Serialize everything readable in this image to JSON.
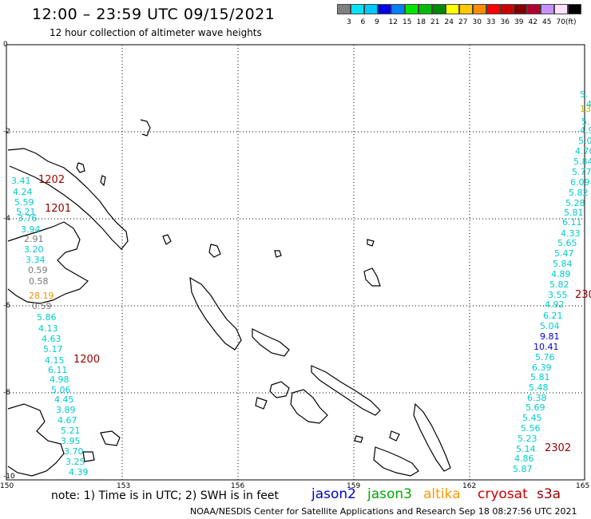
{
  "title": "12:00 – 23:59 UTC 09/15/2021",
  "subtitle": "12 hour collection of altimeter wave heights",
  "colorbar": {
    "colors": [
      "#808080",
      "#00e5ff",
      "#00c8ff",
      "#0000e6",
      "#0080ff",
      "#00e600",
      "#00bb00",
      "#008800",
      "#ffff00",
      "#ffc800",
      "#ff8c00",
      "#ff0000",
      "#c80000",
      "#800000",
      "#b00030",
      "#c890ff",
      "#ffe0ff",
      "#000000"
    ],
    "labels": [
      "3",
      "6",
      "9",
      "12",
      "15",
      "18",
      "21",
      "24",
      "27",
      "30",
      "33",
      "36",
      "39",
      "42",
      "45",
      "70"
    ],
    "unit": "(ft)"
  },
  "axes": {
    "y_labels": [
      "0",
      "-2",
      "-4",
      "-6",
      "-8",
      "-10"
    ],
    "x_labels": [
      "150",
      "153",
      "156",
      "159",
      "162",
      "165"
    ]
  },
  "wave_heights": [
    {
      "v": "3.41",
      "c": "cyan"
    },
    {
      "v": "4.24",
      "c": "cyan"
    },
    {
      "v": "5.59",
      "c": "cyan"
    },
    {
      "v": "5.21",
      "c": "cyan"
    },
    {
      "v": "3.76",
      "c": "cyan"
    },
    {
      "v": "3.94",
      "c": "cyan"
    },
    {
      "v": "2.91",
      "c": "gray"
    },
    {
      "v": "3.20",
      "c": "cyan"
    },
    {
      "v": "3.34",
      "c": "cyan"
    },
    {
      "v": "0.59",
      "c": "gray"
    },
    {
      "v": "0.58",
      "c": "gray"
    },
    {
      "v": "28.19",
      "c": "orange"
    },
    {
      "v": "0.59",
      "c": "gray"
    },
    {
      "v": "5.86",
      "c": "cyan"
    },
    {
      "v": "4.13",
      "c": "cyan"
    },
    {
      "v": "4.63",
      "c": "cyan"
    },
    {
      "v": "5.17",
      "c": "cyan"
    },
    {
      "v": "4.15",
      "c": "cyan"
    },
    {
      "v": "6.11",
      "c": "cyan"
    },
    {
      "v": "4.98",
      "c": "cyan"
    },
    {
      "v": "5.06",
      "c": "cyan"
    },
    {
      "v": "4.45",
      "c": "cyan"
    },
    {
      "v": "3.89",
      "c": "cyan"
    },
    {
      "v": "4.67",
      "c": "cyan"
    },
    {
      "v": "5.21",
      "c": "cyan"
    },
    {
      "v": "3.95",
      "c": "cyan"
    },
    {
      "v": "3.70",
      "c": "cyan"
    },
    {
      "v": "3.25",
      "c": "cyan"
    },
    {
      "v": "4.39",
      "c": "cyan"
    },
    {
      "v": "5.",
      "c": "cyan"
    },
    {
      "v": "4",
      "c": "cyan"
    },
    {
      "v": "13",
      "c": "yellow"
    },
    {
      "v": "5.",
      "c": "cyan"
    },
    {
      "v": "4.9",
      "c": "cyan"
    },
    {
      "v": "5.0",
      "c": "cyan"
    },
    {
      "v": "4.70",
      "c": "cyan"
    },
    {
      "v": "5.84",
      "c": "cyan"
    },
    {
      "v": "5.77",
      "c": "cyan"
    },
    {
      "v": "6.09",
      "c": "cyan"
    },
    {
      "v": "5.82",
      "c": "cyan"
    },
    {
      "v": "5.28",
      "c": "cyan"
    },
    {
      "v": "5.81",
      "c": "cyan"
    },
    {
      "v": "6.11",
      "c": "cyan"
    },
    {
      "v": "4.33",
      "c": "cyan"
    },
    {
      "v": "5.65",
      "c": "cyan"
    },
    {
      "v": "5.47",
      "c": "cyan"
    },
    {
      "v": "5.84",
      "c": "cyan"
    },
    {
      "v": "4.89",
      "c": "cyan"
    },
    {
      "v": "5.82",
      "c": "cyan"
    },
    {
      "v": "3.55",
      "c": "cyan"
    },
    {
      "v": "4.92",
      "c": "cyan"
    },
    {
      "v": "6.21",
      "c": "cyan"
    },
    {
      "v": "5.04",
      "c": "cyan"
    },
    {
      "v": "9.81",
      "c": "blue"
    },
    {
      "v": "10.41",
      "c": "blue"
    },
    {
      "v": "5.76",
      "c": "cyan"
    },
    {
      "v": "6.39",
      "c": "cyan"
    },
    {
      "v": "5.81",
      "c": "cyan"
    },
    {
      "v": "5.48",
      "c": "cyan"
    },
    {
      "v": "6.38",
      "c": "cyan"
    },
    {
      "v": "5.69",
      "c": "cyan"
    },
    {
      "v": "5.45",
      "c": "cyan"
    },
    {
      "v": "5.56",
      "c": "cyan"
    },
    {
      "v": "5.23",
      "c": "cyan"
    },
    {
      "v": "5.14",
      "c": "cyan"
    },
    {
      "v": "4.86",
      "c": "cyan"
    },
    {
      "v": "5.87",
      "c": "cyan"
    }
  ],
  "wave_colors": {
    "cyan": "#00cccc",
    "gray": "#777777",
    "orange": "#e69500",
    "yellow": "#bbbb00",
    "blue": "#0000cc"
  },
  "pass_times": [
    "1202",
    "1201",
    "1200",
    "230",
    "2302"
  ],
  "note": "note:  1) Time is in UTC; 2) SWH is in feet",
  "legend": [
    {
      "label": "jason2",
      "color": "#0000cc"
    },
    {
      "label": "jason3",
      "color": "#00aa00"
    },
    {
      "label": "altika",
      "color": "#ff9900"
    },
    {
      "label": "cryosat",
      "color": "#cc0000"
    },
    {
      "label": "s3a",
      "color": "#990000"
    }
  ],
  "footer": "NOAA/NESDIS Center for Satellite Applications and Research     Sep 18 08:27:56 UTC 2021"
}
